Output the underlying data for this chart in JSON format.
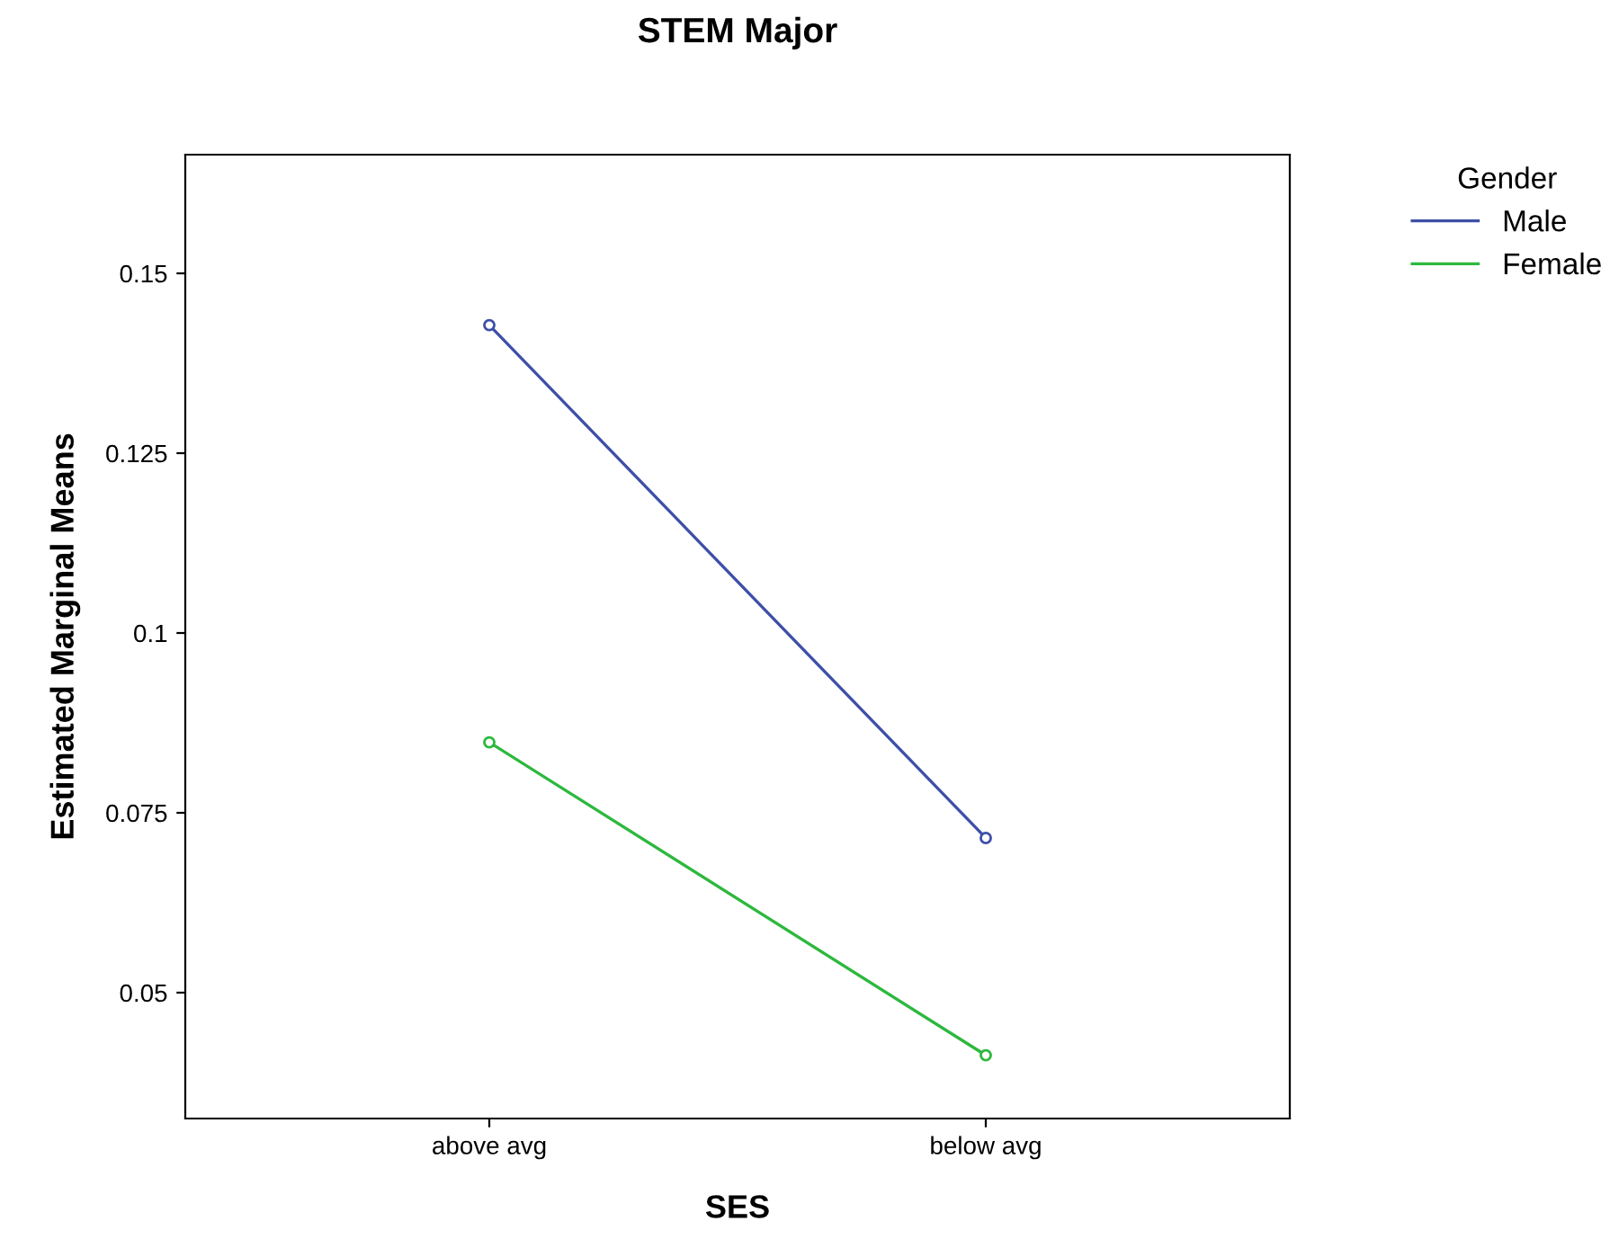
{
  "chart_data": {
    "type": "line",
    "title": "STEM Major",
    "xlabel": "SES",
    "ylabel": "Estimated Marginal Means",
    "legend_title": "Gender",
    "categories": [
      "above avg",
      "below avg"
    ],
    "series": [
      {
        "name": "Male",
        "color": "#3e4fa8",
        "values": [
          0.1428,
          0.0715
        ]
      },
      {
        "name": "Female",
        "color": "#2db83d",
        "values": [
          0.0848,
          0.0413
        ]
      }
    ],
    "ylim": [
      0.0325,
      0.1665
    ],
    "yticks": [
      {
        "value": 0.05,
        "label": "0.05"
      },
      {
        "value": 0.075,
        "label": "0.075"
      },
      {
        "value": 0.1,
        "label": "0.1"
      },
      {
        "value": 0.125,
        "label": "0.125"
      },
      {
        "value": 0.15,
        "label": "0.15"
      }
    ],
    "grid": false,
    "legend": "top right",
    "marker": "circle",
    "line_style": "solid"
  }
}
